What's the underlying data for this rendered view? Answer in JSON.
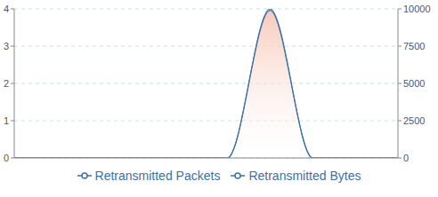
{
  "chart_data": {
    "type": "area",
    "categories": [
      null,
      null,
      null,
      null,
      null,
      null,
      null,
      null,
      null,
      null
    ],
    "series": [
      {
        "name": "Retransmitted Packets",
        "color": "#3d6fa8",
        "values": [
          0,
          0,
          0,
          0,
          0,
          0,
          4,
          0,
          0,
          0
        ]
      },
      {
        "name": "Retransmitted Bytes",
        "color": "#3d6fa8",
        "values": [
          0,
          0,
          0,
          0,
          0,
          0,
          9900,
          0,
          0,
          0
        ],
        "axis": "y2"
      }
    ],
    "ylim": [
      0,
      4
    ],
    "yticks": [
      0,
      1,
      2,
      3,
      4
    ],
    "y2lim": [
      0,
      10000
    ],
    "y2ticks": [
      0,
      2500,
      5000,
      7500,
      10000
    ],
    "grid": true,
    "legend": "bottom",
    "tick_labels": "y"
  }
}
